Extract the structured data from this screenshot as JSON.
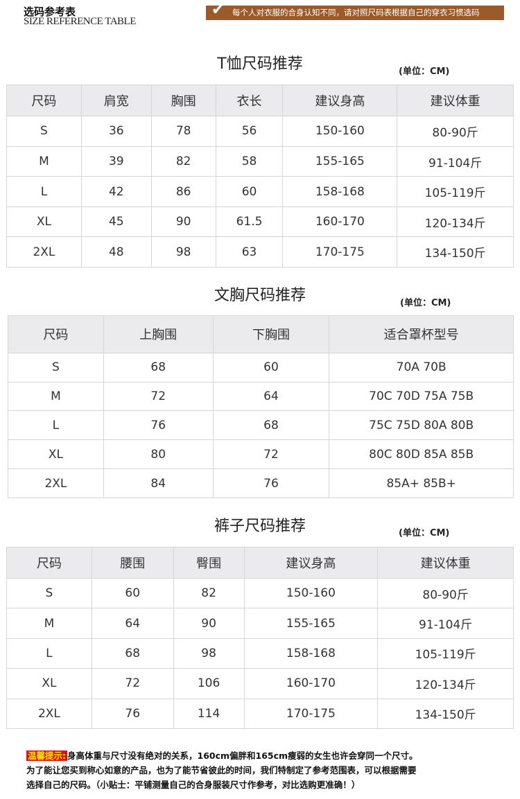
{
  "header": {
    "title_cn": "选码参考表",
    "title_en": "SIZE REFERENCE TABLE",
    "banner": "每个人对衣服的合身认知不同，请对照尺码表根据自己的穿衣习惯选码",
    "banner_icon": "check-icon",
    "banner_color": "#9a5a2a"
  },
  "unit": "(单位：CM)",
  "tshirt": {
    "title": "T恤尺码推荐",
    "headers": [
      "尺码",
      "肩宽",
      "胸围",
      "衣长",
      "建议身高",
      "建议体重"
    ],
    "rows": [
      [
        "S",
        "36",
        "78",
        "56",
        "150-160",
        "80-90斤"
      ],
      [
        "M",
        "39",
        "82",
        "58",
        "155-165",
        "91-104斤"
      ],
      [
        "L",
        "42",
        "86",
        "60",
        "158-168",
        "105-119斤"
      ],
      [
        "XL",
        "45",
        "90",
        "61.5",
        "160-170",
        "120-134斤"
      ],
      [
        "2XL",
        "48",
        "98",
        "63",
        "170-175",
        "134-150斤"
      ]
    ]
  },
  "bra": {
    "title": "文胸尺码推荐",
    "headers": [
      "尺码",
      "上胸围",
      "下胸围",
      "适合罩杯型号"
    ],
    "rows": [
      [
        "S",
        "68",
        "60",
        "70A 70B"
      ],
      [
        "M",
        "72",
        "64",
        "70C 70D 75A 75B"
      ],
      [
        "L",
        "76",
        "68",
        "75C 75D 80A 80B"
      ],
      [
        "XL",
        "80",
        "72",
        "80C 80D 85A 85B"
      ],
      [
        "2XL",
        "84",
        "76",
        "85A+ 85B+"
      ]
    ]
  },
  "pants": {
    "title": "裤子尺码推荐",
    "headers": [
      "尺码",
      "腰围",
      "臀围",
      "建议身高",
      "建议体重"
    ],
    "rows": [
      [
        "S",
        "60",
        "82",
        "150-160",
        "80-90斤"
      ],
      [
        "M",
        "64",
        "90",
        "155-165",
        "91-104斤"
      ],
      [
        "L",
        "68",
        "98",
        "158-168",
        "105-119斤"
      ],
      [
        "XL",
        "72",
        "106",
        "160-170",
        "120-134斤"
      ],
      [
        "2XL",
        "76",
        "114",
        "170-175",
        "134-150斤"
      ]
    ]
  },
  "note": {
    "label": "温馨提示:",
    "line1": "身高体重与尺寸没有绝对的关系，160cm偏胖和165cm瘦弱的女生也许会穿同一个尺寸。",
    "line2": "为了能让您买到称心如意的产品，也为了能节省彼此的时间，我们特制定了参考范围表，可以根据需要",
    "line3": "选择自己的尺码。（小贴士：平铺测量自己的合身服装尺寸作参考，对比选购更准确！）",
    "label_color": "#e01010"
  }
}
